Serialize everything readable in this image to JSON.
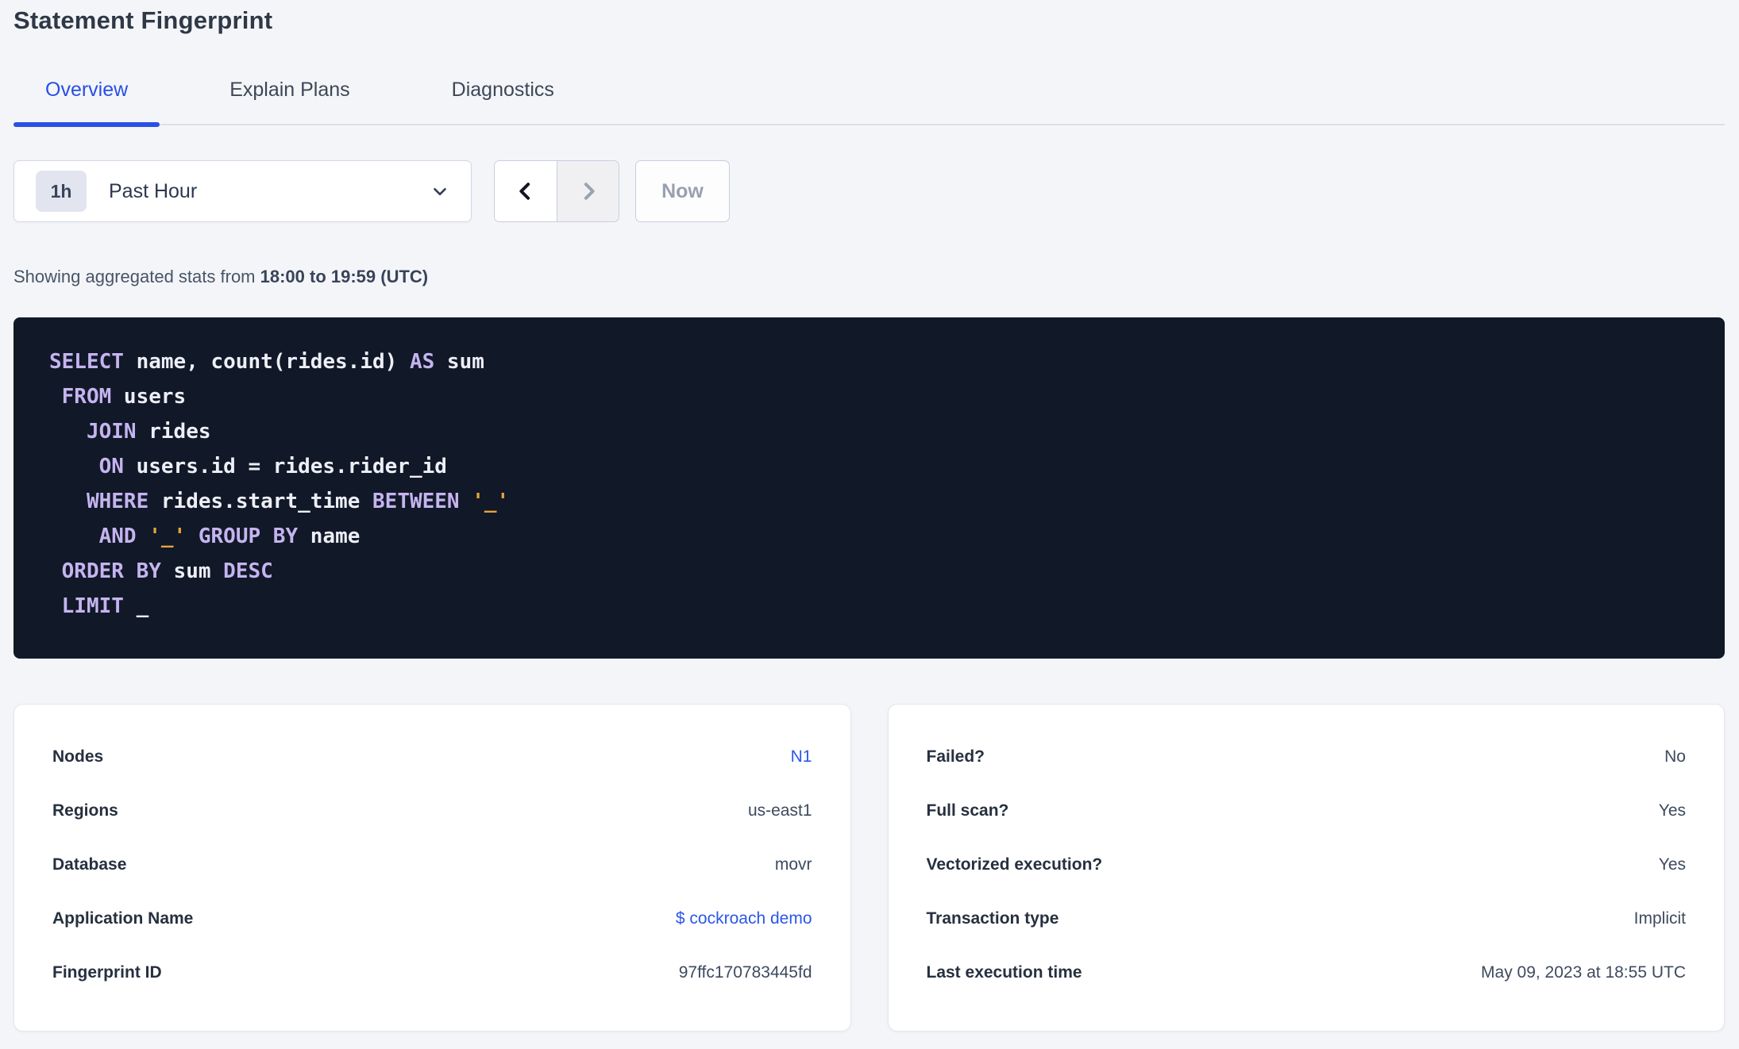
{
  "page": {
    "title": "Statement Fingerprint"
  },
  "tabs": [
    {
      "label": "Overview",
      "active": true
    },
    {
      "label": "Explain Plans",
      "active": false
    },
    {
      "label": "Diagnostics",
      "active": false
    }
  ],
  "time_picker": {
    "badge": "1h",
    "selected": "Past Hour",
    "now_label": "Now",
    "prev_enabled": true,
    "next_enabled": false
  },
  "stats_note": {
    "prefix": "Showing aggregated stats from ",
    "range": "18:00 to 19:59 (UTC)"
  },
  "sql": {
    "lines": [
      [
        {
          "c": "kw",
          "t": "SELECT"
        },
        {
          "c": "pl",
          "t": " name, count(rides.id) "
        },
        {
          "c": "kw",
          "t": "AS"
        },
        {
          "c": "pl",
          "t": " sum"
        }
      ],
      [
        {
          "c": "pl",
          "t": " "
        },
        {
          "c": "kw",
          "t": "FROM"
        },
        {
          "c": "pl",
          "t": " users"
        }
      ],
      [
        {
          "c": "pl",
          "t": "   "
        },
        {
          "c": "kw",
          "t": "JOIN"
        },
        {
          "c": "pl",
          "t": " rides"
        }
      ],
      [
        {
          "c": "pl",
          "t": "    "
        },
        {
          "c": "kw",
          "t": "ON"
        },
        {
          "c": "pl",
          "t": " users.id = rides.rider_id"
        }
      ],
      [
        {
          "c": "pl",
          "t": "   "
        },
        {
          "c": "kw",
          "t": "WHERE"
        },
        {
          "c": "pl",
          "t": " rides.start_time "
        },
        {
          "c": "kw",
          "t": "BETWEEN"
        },
        {
          "c": "pl",
          "t": " "
        },
        {
          "c": "str",
          "t": "'_'"
        }
      ],
      [
        {
          "c": "pl",
          "t": "    "
        },
        {
          "c": "kw",
          "t": "AND"
        },
        {
          "c": "pl",
          "t": " "
        },
        {
          "c": "str",
          "t": "'_'"
        },
        {
          "c": "pl",
          "t": " "
        },
        {
          "c": "kw",
          "t": "GROUP BY"
        },
        {
          "c": "pl",
          "t": " name"
        }
      ],
      [
        {
          "c": "pl",
          "t": " "
        },
        {
          "c": "kw",
          "t": "ORDER BY"
        },
        {
          "c": "pl",
          "t": " sum "
        },
        {
          "c": "kw",
          "t": "DESC"
        }
      ],
      [
        {
          "c": "pl",
          "t": " "
        },
        {
          "c": "kw",
          "t": "LIMIT"
        },
        {
          "c": "pl",
          "t": " _"
        }
      ]
    ]
  },
  "details_cards": [
    {
      "name": "left",
      "rows": [
        {
          "label": "Nodes",
          "value": "N1",
          "link": true
        },
        {
          "label": "Regions",
          "value": "us-east1",
          "link": false
        },
        {
          "label": "Database",
          "value": "movr",
          "link": false
        },
        {
          "label": "Application Name",
          "value": "$ cockroach demo",
          "link": true
        },
        {
          "label": "Fingerprint ID",
          "value": "97ffc170783445fd",
          "link": false
        }
      ]
    },
    {
      "name": "right",
      "rows": [
        {
          "label": "Failed?",
          "value": "No",
          "link": false
        },
        {
          "label": "Full scan?",
          "value": "Yes",
          "link": false
        },
        {
          "label": "Vectorized execution?",
          "value": "Yes",
          "link": false
        },
        {
          "label": "Transaction type",
          "value": "Implicit",
          "link": false
        },
        {
          "label": "Last execution time",
          "value": "May 09, 2023 at 18:55 UTC",
          "link": false
        }
      ]
    }
  ],
  "colors": {
    "accent": "#2a4fe4",
    "page-bg": "#f4f5f8",
    "sql-bg": "#111827",
    "sql-kw": "#c5b4f0",
    "sql-plain": "#eceff6",
    "sql-str": "#e8a23e",
    "link": "#2b57e8"
  }
}
